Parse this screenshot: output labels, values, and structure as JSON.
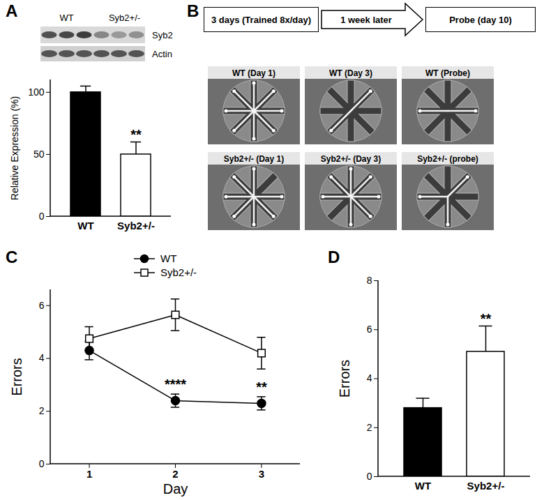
{
  "chart_data": [
    {
      "panel": "A",
      "type": "bar",
      "categories": [
        "WT",
        "Syb2+/-"
      ],
      "values": [
        100,
        50
      ],
      "errors": [
        5,
        10
      ],
      "colors": [
        "#000000",
        "#ffffff"
      ],
      "ylabel": "Relative Expression (%)",
      "ylim": [
        0,
        110
      ],
      "yticks": [
        0,
        50,
        100
      ],
      "annotations": [
        {
          "category": "Syb2+/-",
          "text": "**"
        }
      ]
    },
    {
      "panel": "C",
      "type": "line",
      "x": [
        1,
        2,
        3
      ],
      "xlabel": "Day",
      "ylabel": "Errors",
      "xlim": [
        0.55,
        3.45
      ],
      "xticks": [
        1,
        2,
        3
      ],
      "ylim": [
        0,
        6.6
      ],
      "yticks": [
        0,
        2,
        4,
        6
      ],
      "legend": "top",
      "series": [
        {
          "name": "WT",
          "color": "#000000",
          "marker": "circle",
          "values": [
            4.3,
            2.4,
            2.3
          ],
          "errors": [
            0.35,
            0.25,
            0.25
          ]
        },
        {
          "name": "Syb2+/-",
          "color": "#000000",
          "marker": "square-open",
          "values": [
            4.75,
            5.65,
            4.2
          ],
          "errors": [
            0.45,
            0.6,
            0.6
          ]
        }
      ],
      "annotations": [
        {
          "x": 2,
          "y": 3.0,
          "text": "****"
        },
        {
          "x": 3,
          "y": 2.9,
          "text": "**"
        }
      ]
    },
    {
      "panel": "D",
      "type": "bar",
      "categories": [
        "WT",
        "Syb2+/-"
      ],
      "values": [
        2.8,
        5.1
      ],
      "errors": [
        0.4,
        1.05
      ],
      "colors": [
        "#000000",
        "#ffffff"
      ],
      "ylabel": "Errors",
      "ylim": [
        0,
        8
      ],
      "yticks": [
        0,
        2,
        4,
        6,
        8
      ],
      "annotations": [
        {
          "category": "Syb2+/-",
          "text": "**"
        }
      ]
    }
  ],
  "blot": {
    "panel": "A",
    "groups": [
      "WT",
      "Syb2+/-"
    ],
    "rows": [
      "Syb2",
      "Actin"
    ]
  },
  "protocol": {
    "panel": "B",
    "steps": [
      "3 days (Trained 8x/day)",
      "1 week later",
      "Probe (day 10)"
    ],
    "images": [
      "WT (Day 1)",
      "WT (Day 3)",
      "WT (Probe)",
      "Syb2+/- (Day 1)",
      "Syb2+/- (Day 3)",
      "Syb2+/- (probe)"
    ]
  }
}
